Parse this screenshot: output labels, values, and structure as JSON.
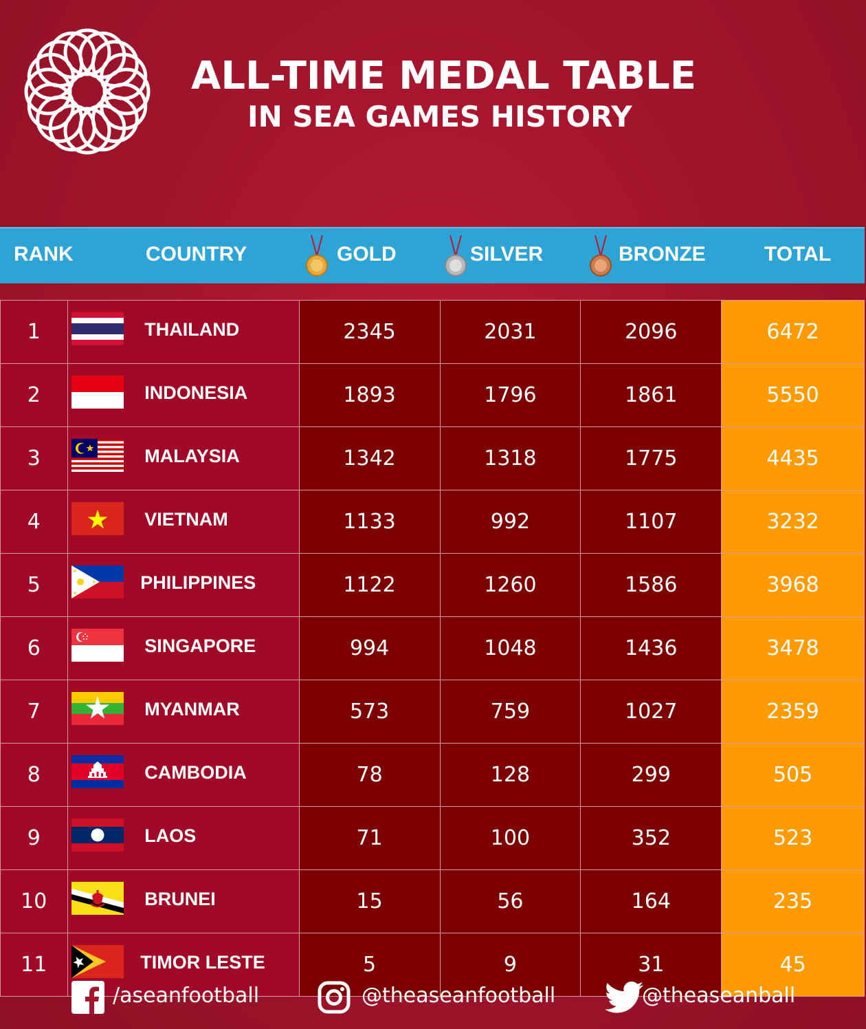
{
  "title": {
    "line1": "ALL-TIME MEDAL TABLE",
    "line2": "IN SEA GAMES HISTORY"
  },
  "colors": {
    "background": "#a4162e",
    "header_bar": "#2ea3d6",
    "country_cell": "#a10a26",
    "medal_cell": "#7c0000",
    "total_cell": "#fe9b04"
  },
  "headers": {
    "rank": "RANK",
    "country": "COUNTRY",
    "gold": "GOLD",
    "silver": "SILVER",
    "bronze": "BRONZE",
    "total": "TOTAL"
  },
  "rows": [
    {
      "rank": "1",
      "flag": "thailand-flag-icon",
      "country": "THAILAND",
      "gold": "2345",
      "silver": "2031",
      "bronze": "2096",
      "total": "6472"
    },
    {
      "rank": "2",
      "flag": "indonesia-flag-icon",
      "country": "INDONESIA",
      "gold": "1893",
      "silver": "1796",
      "bronze": "1861",
      "total": "5550"
    },
    {
      "rank": "3",
      "flag": "malaysia-flag-icon",
      "country": "MALAYSIA",
      "gold": "1342",
      "silver": "1318",
      "bronze": "1775",
      "total": "4435"
    },
    {
      "rank": "4",
      "flag": "vietnam-flag-icon",
      "country": "VIETNAM",
      "gold": "1133",
      "silver": "992",
      "bronze": "1107",
      "total": "3232"
    },
    {
      "rank": "5",
      "flag": "philippines-flag-icon",
      "country": "PHILIPPINES",
      "gold": "1122",
      "silver": "1260",
      "bronze": "1586",
      "total": "3968"
    },
    {
      "rank": "6",
      "flag": "singapore-flag-icon",
      "country": "SINGAPORE",
      "gold": "994",
      "silver": "1048",
      "bronze": "1436",
      "total": "3478"
    },
    {
      "rank": "7",
      "flag": "myanmar-flag-icon",
      "country": "MYANMAR",
      "gold": "573",
      "silver": "759",
      "bronze": "1027",
      "total": "2359"
    },
    {
      "rank": "8",
      "flag": "cambodia-flag-icon",
      "country": "CAMBODIA",
      "gold": "78",
      "silver": "128",
      "bronze": "299",
      "total": "505"
    },
    {
      "rank": "9",
      "flag": "laos-flag-icon",
      "country": "LAOS",
      "gold": "71",
      "silver": "100",
      "bronze": "352",
      "total": "523"
    },
    {
      "rank": "10",
      "flag": "brunei-flag-icon",
      "country": "BRUNEI",
      "gold": "15",
      "silver": "56",
      "bronze": "164",
      "total": "235"
    },
    {
      "rank": "11",
      "flag": "timor-leste-flag-icon",
      "country": "TIMOR LESTE",
      "gold": "5",
      "silver": "9",
      "bronze": "31",
      "total": "45"
    }
  ],
  "footer": {
    "facebook": "/aseanfootball",
    "instagram": "@theaseanfootball",
    "twitter": "@theaseanball"
  }
}
